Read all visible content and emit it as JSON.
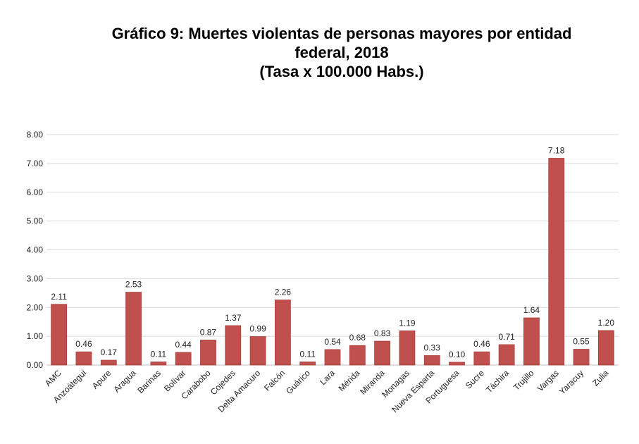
{
  "chart_data": {
    "type": "bar",
    "title_lines": [
      "Gráfico 9: Muertes violentas de personas mayores por entidad",
      "federal, 2018",
      "(Tasa x 100.000 Habs.)"
    ],
    "categories": [
      "AMC",
      "Anzoátegui",
      "Apure",
      "Aragua",
      "Barinas",
      "Bolívar",
      "Carabobo",
      "Cojedes",
      "Delta Amacuro",
      "Falcón",
      "Guárico",
      "Lara",
      "Mérida",
      "Miranda",
      "Monagas",
      "Nueva Esparta",
      "Portuguesa",
      "Sucre",
      "Táchira",
      "Trujillo",
      "Vargas",
      "Yaracuy",
      "Zulia"
    ],
    "values": [
      2.11,
      0.46,
      0.17,
      2.53,
      0.11,
      0.44,
      0.87,
      1.37,
      0.99,
      2.26,
      0.11,
      0.54,
      0.68,
      0.83,
      1.19,
      0.33,
      0.1,
      0.46,
      0.71,
      1.64,
      7.18,
      0.55,
      1.2
    ],
    "value_labels": [
      "2.11",
      "0.46",
      "0.17",
      "2.53",
      "0.11",
      "0.44",
      "0.87",
      "1.37",
      "0.99",
      "2.26",
      "0.11",
      "0.54",
      "0.68",
      "0.83",
      "1.19",
      "0.33",
      "0.10",
      "0.46",
      "0.71",
      "1.64",
      "7.18",
      "0.55",
      "1.20"
    ],
    "yticks": [
      "0.00",
      "1.00",
      "2.00",
      "3.00",
      "4.00",
      "5.00",
      "6.00",
      "7.00",
      "8.00"
    ],
    "ylim": [
      0,
      8
    ],
    "grid": true,
    "bar_color": "#c0504d"
  }
}
